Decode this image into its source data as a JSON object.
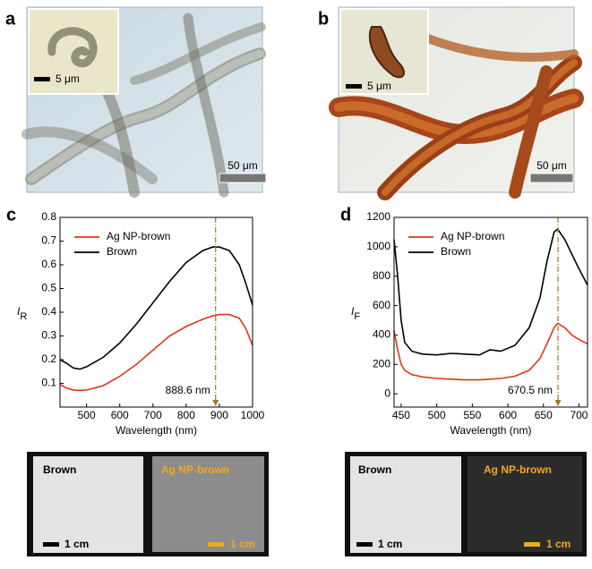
{
  "micrographs": [
    {
      "panel": "a",
      "inset_scale": "5 μm",
      "scale": "50 μm"
    },
    {
      "panel": "b",
      "inset_scale": "5 μm",
      "scale": "50 μm"
    }
  ],
  "chart_data": [
    {
      "type": "line",
      "panel": "c",
      "x_label": "Wavelength (nm)",
      "y_label": "I",
      "y_label_subscript": "R",
      "x": [
        420,
        440,
        460,
        480,
        500,
        550,
        600,
        650,
        700,
        750,
        800,
        850,
        880,
        900,
        930,
        960,
        980,
        1000
      ],
      "series": [
        {
          "name": "Ag NP-brown",
          "color": "#d9381e",
          "values": [
            0.095,
            0.08,
            0.072,
            0.07,
            0.072,
            0.09,
            0.13,
            0.18,
            0.24,
            0.3,
            0.34,
            0.37,
            0.385,
            0.39,
            0.39,
            0.375,
            0.33,
            0.26
          ]
        },
        {
          "name": "Brown",
          "color": "#000000",
          "values": [
            0.2,
            0.185,
            0.165,
            0.16,
            0.17,
            0.21,
            0.27,
            0.35,
            0.44,
            0.53,
            0.61,
            0.66,
            0.675,
            0.675,
            0.66,
            0.6,
            0.52,
            0.43
          ]
        }
      ],
      "xlim": [
        420,
        1000
      ],
      "xticks": [
        500,
        600,
        700,
        800,
        900,
        1000
      ],
      "ylim": [
        0,
        0.8
      ],
      "yticks": [
        0.1,
        0.2,
        0.3,
        0.4,
        0.5,
        0.6,
        0.7,
        0.8
      ],
      "annotation": {
        "value": 888.6,
        "label": "888.6 nm"
      },
      "legend": "upper left"
    },
    {
      "type": "line",
      "panel": "d",
      "x_label": "Wavelength (nm)",
      "y_label": "I",
      "y_label_subscript": "F",
      "x": [
        440,
        445,
        450,
        455,
        465,
        480,
        500,
        520,
        540,
        560,
        575,
        590,
        610,
        630,
        645,
        655,
        665,
        670,
        680,
        690,
        700,
        712
      ],
      "series": [
        {
          "name": "Ag NP-brown",
          "color": "#d9381e",
          "values": [
            430,
            300,
            200,
            160,
            130,
            115,
            105,
            100,
            95,
            95,
            100,
            105,
            120,
            160,
            240,
            340,
            450,
            480,
            450,
            400,
            370,
            340
          ]
        },
        {
          "name": "Brown",
          "color": "#000000",
          "values": [
            1050,
            800,
            500,
            350,
            290,
            270,
            265,
            275,
            270,
            265,
            300,
            290,
            330,
            450,
            650,
            900,
            1100,
            1120,
            1050,
            950,
            850,
            740
          ]
        }
      ],
      "xlim": [
        440,
        712
      ],
      "xticks": [
        450,
        500,
        550,
        600,
        650,
        700
      ],
      "ylim": [
        -90,
        1200
      ],
      "yticks": [
        0,
        200,
        400,
        600,
        800,
        1000,
        1200
      ],
      "annotation": {
        "value": 670.5,
        "label": "670.5 nm"
      },
      "legend": "upper left"
    }
  ],
  "photos": [
    {
      "left_label": "Brown",
      "right_label": "Ag NP-brown",
      "left_scale": "1 cm",
      "right_scale": "1 cm"
    },
    {
      "left_label": "Brown",
      "right_label": "Ag NP-brown",
      "left_scale": "1 cm",
      "right_scale": "1 cm"
    }
  ]
}
